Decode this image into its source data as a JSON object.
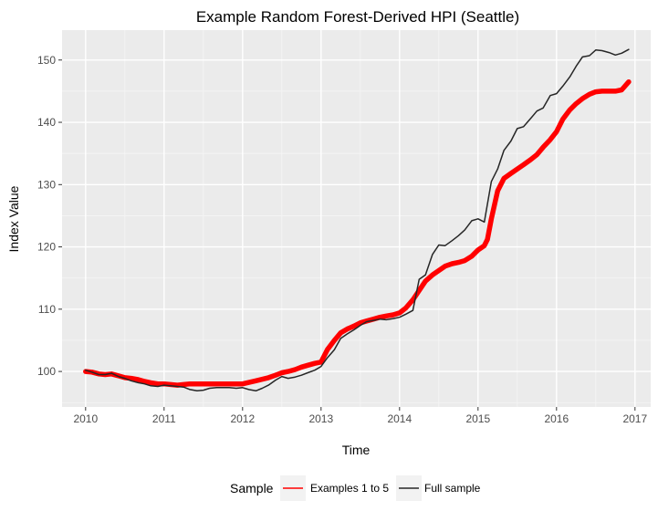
{
  "chart_data": {
    "type": "line",
    "title": "Example Random Forest-Derived HPI (Seattle)",
    "xlabel": "Time",
    "ylabel": "Index Value",
    "xlim": [
      2009.7,
      2017.2
    ],
    "ylim": [
      94.3,
      154.8
    ],
    "x_ticks": [
      2010,
      2011,
      2012,
      2013,
      2014,
      2015,
      2016,
      2017
    ],
    "y_ticks": [
      100,
      110,
      120,
      130,
      140,
      150
    ],
    "grid": true,
    "legend": {
      "title": "Sample",
      "placement": "bottom"
    },
    "series": [
      {
        "name": "Examples 1 to 5",
        "color": "#ff0000",
        "points": [
          [
            2010.0,
            100.0
          ],
          [
            2010.08,
            99.9
          ],
          [
            2010.17,
            99.6
          ],
          [
            2010.25,
            99.5
          ],
          [
            2010.33,
            99.6
          ],
          [
            2010.42,
            99.3
          ],
          [
            2010.5,
            99.0
          ],
          [
            2010.58,
            98.9
          ],
          [
            2010.67,
            98.7
          ],
          [
            2010.75,
            98.4
          ],
          [
            2010.83,
            98.2
          ],
          [
            2010.92,
            98.0
          ],
          [
            2011.0,
            98.0
          ],
          [
            2011.08,
            97.9
          ],
          [
            2011.17,
            97.8
          ],
          [
            2011.25,
            97.9
          ],
          [
            2011.33,
            98.0
          ],
          [
            2011.42,
            98.0
          ],
          [
            2011.5,
            98.0
          ],
          [
            2011.67,
            98.0
          ],
          [
            2011.83,
            98.0
          ],
          [
            2012.0,
            98.0
          ],
          [
            2012.17,
            98.5
          ],
          [
            2012.33,
            99.0
          ],
          [
            2012.42,
            99.4
          ],
          [
            2012.5,
            99.8
          ],
          [
            2012.58,
            100.0
          ],
          [
            2012.67,
            100.3
          ],
          [
            2012.75,
            100.7
          ],
          [
            2012.83,
            101.0
          ],
          [
            2012.92,
            101.3
          ],
          [
            2013.0,
            101.5
          ],
          [
            2013.08,
            103.5
          ],
          [
            2013.17,
            105.0
          ],
          [
            2013.25,
            106.2
          ],
          [
            2013.33,
            106.8
          ],
          [
            2013.42,
            107.3
          ],
          [
            2013.5,
            107.8
          ],
          [
            2013.58,
            108.1
          ],
          [
            2013.67,
            108.4
          ],
          [
            2013.75,
            108.7
          ],
          [
            2013.83,
            108.9
          ],
          [
            2013.92,
            109.1
          ],
          [
            2014.0,
            109.4
          ],
          [
            2014.08,
            110.2
          ],
          [
            2014.17,
            111.5
          ],
          [
            2014.25,
            113.0
          ],
          [
            2014.33,
            114.5
          ],
          [
            2014.42,
            115.5
          ],
          [
            2014.5,
            116.2
          ],
          [
            2014.58,
            116.9
          ],
          [
            2014.67,
            117.3
          ],
          [
            2014.75,
            117.5
          ],
          [
            2014.83,
            117.8
          ],
          [
            2014.92,
            118.5
          ],
          [
            2015.0,
            119.5
          ],
          [
            2015.08,
            120.2
          ],
          [
            2015.12,
            121.2
          ],
          [
            2015.17,
            124.5
          ],
          [
            2015.25,
            129.0
          ],
          [
            2015.33,
            131.0
          ],
          [
            2015.42,
            131.8
          ],
          [
            2015.5,
            132.5
          ],
          [
            2015.58,
            133.2
          ],
          [
            2015.67,
            134.0
          ],
          [
            2015.75,
            134.8
          ],
          [
            2015.83,
            136.0
          ],
          [
            2015.92,
            137.2
          ],
          [
            2016.0,
            138.5
          ],
          [
            2016.08,
            140.5
          ],
          [
            2016.17,
            142.0
          ],
          [
            2016.25,
            143.0
          ],
          [
            2016.33,
            143.8
          ],
          [
            2016.42,
            144.5
          ],
          [
            2016.5,
            144.9
          ],
          [
            2016.58,
            145.0
          ],
          [
            2016.67,
            145.0
          ],
          [
            2016.75,
            145.0
          ],
          [
            2016.83,
            145.2
          ],
          [
            2016.92,
            146.5
          ]
        ]
      },
      {
        "name": "Full sample",
        "color": "#262626",
        "points": [
          [
            2010.0,
            100.2
          ],
          [
            2010.08,
            99.9
          ],
          [
            2010.17,
            99.5
          ],
          [
            2010.25,
            99.5
          ],
          [
            2010.33,
            99.7
          ],
          [
            2010.42,
            99.2
          ],
          [
            2010.5,
            98.9
          ],
          [
            2010.58,
            98.5
          ],
          [
            2010.67,
            98.2
          ],
          [
            2010.75,
            98.0
          ],
          [
            2010.83,
            97.7
          ],
          [
            2010.92,
            97.6
          ],
          [
            2011.0,
            97.8
          ],
          [
            2011.08,
            97.7
          ],
          [
            2011.17,
            97.6
          ],
          [
            2011.25,
            97.5
          ],
          [
            2011.33,
            97.1
          ],
          [
            2011.42,
            96.9
          ],
          [
            2011.5,
            97.0
          ],
          [
            2011.58,
            97.3
          ],
          [
            2011.67,
            97.4
          ],
          [
            2011.75,
            97.4
          ],
          [
            2011.83,
            97.4
          ],
          [
            2011.92,
            97.3
          ],
          [
            2012.0,
            97.4
          ],
          [
            2012.08,
            97.1
          ],
          [
            2012.17,
            96.9
          ],
          [
            2012.25,
            97.3
          ],
          [
            2012.33,
            97.8
          ],
          [
            2012.42,
            98.6
          ],
          [
            2012.5,
            99.2
          ],
          [
            2012.58,
            98.9
          ],
          [
            2012.67,
            99.1
          ],
          [
            2012.75,
            99.4
          ],
          [
            2012.83,
            99.8
          ],
          [
            2012.92,
            100.2
          ],
          [
            2013.0,
            100.8
          ],
          [
            2013.08,
            102.2
          ],
          [
            2013.17,
            103.5
          ],
          [
            2013.25,
            105.3
          ],
          [
            2013.33,
            106.0
          ],
          [
            2013.42,
            106.7
          ],
          [
            2013.5,
            107.4
          ],
          [
            2013.58,
            108.0
          ],
          [
            2013.67,
            108.2
          ],
          [
            2013.75,
            108.4
          ],
          [
            2013.83,
            108.3
          ],
          [
            2013.92,
            108.5
          ],
          [
            2014.0,
            108.7
          ],
          [
            2014.08,
            109.2
          ],
          [
            2014.17,
            109.8
          ],
          [
            2014.25,
            114.8
          ],
          [
            2014.33,
            115.5
          ],
          [
            2014.42,
            118.8
          ],
          [
            2014.5,
            120.3
          ],
          [
            2014.58,
            120.2
          ],
          [
            2014.67,
            121.0
          ],
          [
            2014.75,
            121.8
          ],
          [
            2014.83,
            122.7
          ],
          [
            2014.92,
            124.2
          ],
          [
            2015.0,
            124.5
          ],
          [
            2015.08,
            124.0
          ],
          [
            2015.17,
            130.5
          ],
          [
            2015.25,
            132.5
          ],
          [
            2015.33,
            135.5
          ],
          [
            2015.42,
            137.0
          ],
          [
            2015.5,
            139.0
          ],
          [
            2015.58,
            139.3
          ],
          [
            2015.67,
            140.6
          ],
          [
            2015.75,
            141.8
          ],
          [
            2015.83,
            142.3
          ],
          [
            2015.92,
            144.3
          ],
          [
            2016.0,
            144.6
          ],
          [
            2016.08,
            145.8
          ],
          [
            2016.17,
            147.3
          ],
          [
            2016.25,
            149.0
          ],
          [
            2016.33,
            150.5
          ],
          [
            2016.42,
            150.7
          ],
          [
            2016.5,
            151.6
          ],
          [
            2016.58,
            151.5
          ],
          [
            2016.67,
            151.2
          ],
          [
            2016.75,
            150.8
          ],
          [
            2016.83,
            151.1
          ],
          [
            2016.92,
            151.7
          ]
        ]
      }
    ]
  }
}
